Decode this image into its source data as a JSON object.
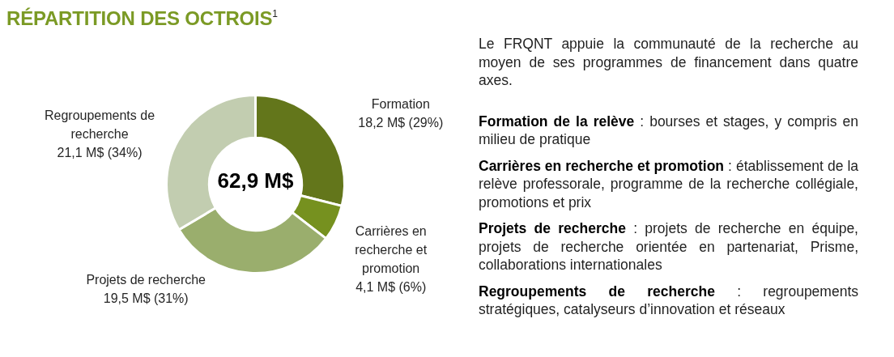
{
  "chart_data": {
    "type": "donut",
    "title": "RÉPARTITION DES OCTROIS$^{1}$",
    "categories": [
      "Formation",
      "Carrières en recherche et promotion",
      "Projets de recherche",
      "Regroupements de recherche"
    ],
    "values": [
      18.2,
      4.1,
      19.5,
      21.1
    ],
    "colors": [
      "#63761b",
      "#76911f",
      "#9aae6d",
      "#c2cdb0"
    ],
    "value_labels": [
      "18,2 M$ (29%)",
      "4,1 M$ (6%)",
      "19,5 M$ (31%)",
      "21,1 M$ (34%)"
    ],
    "annotations": [
      "62,9 M$",
      "Le FRQNT appuie la communauté de la recherche au moyen de ses programmes de financement dans quatre axes.",
      "Formation de la relève : bourses et stages, y compris en milieu de pratique",
      "Carrières en recherche et promotion : établissement de la relève professorale, programme de la recherche collégiale, promotions et prix",
      "Projets de recherche : projets de recherche en équipe, projets de recherche orientée en partenariat, Prisme, collaborations internationales",
      "Regroupements de recherche : regroupements stratégiques, catalyseurs d’innovation et réseaux"
    ]
  }
}
